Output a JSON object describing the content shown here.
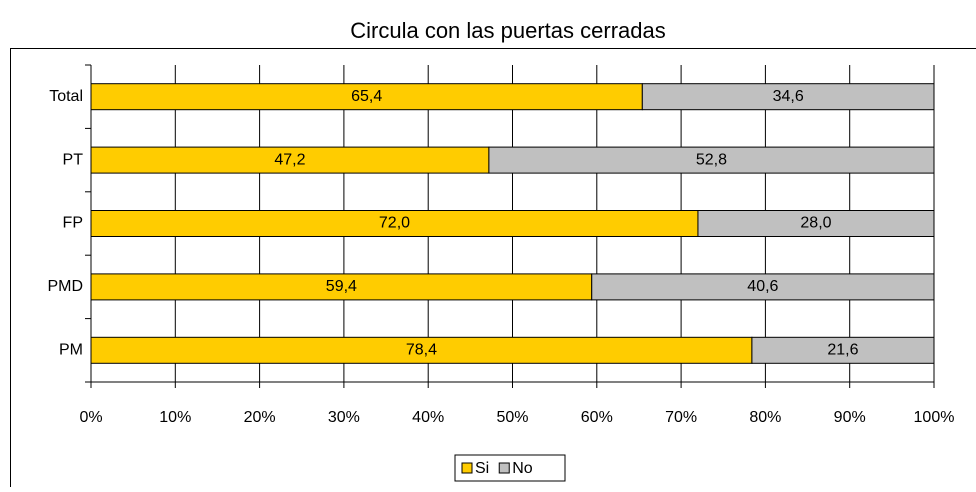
{
  "chart_data": {
    "type": "stacked_bar_horizontal",
    "title": "Circula con las puertas cerradas",
    "categories": [
      "Total",
      "PT",
      "FP",
      "PMD",
      "PM"
    ],
    "series": [
      {
        "name": "Si",
        "color": "#ffcc00",
        "values": [
          65.4,
          47.2,
          72.0,
          59.4,
          78.4
        ],
        "value_labels": [
          "65,4",
          "47,2",
          "72,0",
          "59,4",
          "78,4"
        ]
      },
      {
        "name": "No",
        "color": "#c0c0c0",
        "values": [
          34.6,
          52.8,
          28.0,
          40.6,
          21.6
        ],
        "value_labels": [
          "34,6",
          "52,8",
          "28,0",
          "40,6",
          "21,6"
        ]
      }
    ],
    "xlim": [
      0,
      100
    ],
    "xticks": [
      {
        "value": 0,
        "label": "0%"
      },
      {
        "value": 10,
        "label": "10%"
      },
      {
        "value": 20,
        "label": "20%"
      },
      {
        "value": 30,
        "label": "30%"
      },
      {
        "value": 40,
        "label": "40%"
      },
      {
        "value": 50,
        "label": "50%"
      },
      {
        "value": 60,
        "label": "60%"
      },
      {
        "value": 70,
        "label": "70%"
      },
      {
        "value": 80,
        "label": "80%"
      },
      {
        "value": 90,
        "label": "90%"
      },
      {
        "value": 100,
        "label": "100%"
      }
    ],
    "grid": true,
    "legend": "bottom"
  }
}
